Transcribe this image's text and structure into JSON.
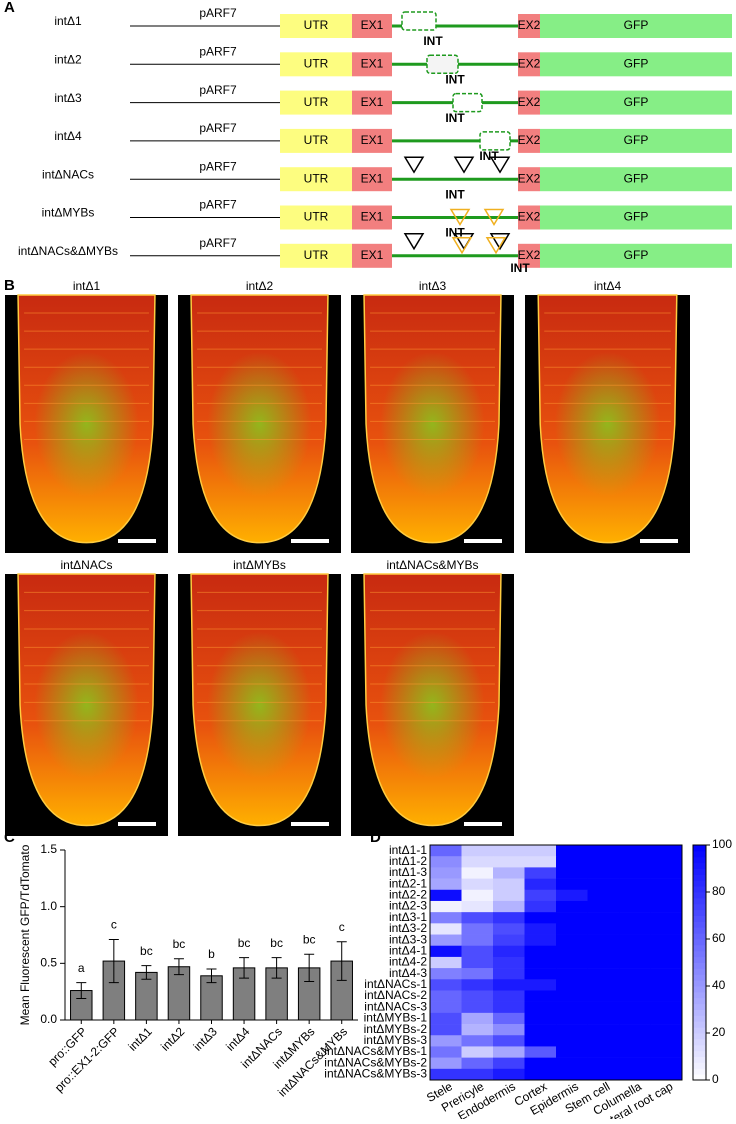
{
  "panel_a": {
    "label": "A",
    "constructs": [
      {
        "name": "intΔ1",
        "promoter": "pARF7",
        "utr": "UTR",
        "ex1": "EX1",
        "int": "INT",
        "ex2": "EX2",
        "gfp": "GFP"
      },
      {
        "name": "intΔ2",
        "promoter": "pARF7",
        "utr": "UTR",
        "ex1": "EX1",
        "int": "INT",
        "ex2": "EX2",
        "gfp": "GFP"
      },
      {
        "name": "intΔ3",
        "promoter": "pARF7",
        "utr": "UTR",
        "ex1": "EX1",
        "int": "INT",
        "ex2": "EX2",
        "gfp": "GFP"
      },
      {
        "name": "intΔ4",
        "promoter": "pARF7",
        "utr": "UTR",
        "ex1": "EX1",
        "int": "INT",
        "ex2": "EX2",
        "gfp": "GFP"
      },
      {
        "name": "intΔNACs",
        "promoter": "pARF7",
        "utr": "UTR",
        "ex1": "EX1",
        "int": "INT",
        "ex2": "EX2",
        "gfp": "GFP"
      },
      {
        "name": "intΔMYBs",
        "promoter": "pARF7",
        "utr": "UTR",
        "ex1": "EX1",
        "int": "INT",
        "ex2": "EX2",
        "gfp": "GFP"
      },
      {
        "name": "intΔNACs&ΔMYBs",
        "promoter": "pARF7",
        "utr": "UTR",
        "ex1": "EX1",
        "int": "INT",
        "ex2": "EX2",
        "gfp": "GFP"
      }
    ]
  },
  "panel_b": {
    "label": "B",
    "images": [
      "intΔ1",
      "intΔ2",
      "intΔ3",
      "intΔ4",
      "intΔNACs",
      "intΔMYBs",
      "intΔNACs&MYBs"
    ]
  },
  "chart_data": [
    {
      "type": "bar",
      "label": "C",
      "ylabel": "Mean Fluorescent  GFP/TdTomato",
      "categories": [
        "pro::GFP",
        "pro::EX1-2:GFP",
        "intΔ1",
        "intΔ2",
        "intΔ3",
        "intΔ4",
        "intΔNACs",
        "intΔMYBs",
        "intΔNACs&MYBs"
      ],
      "values": [
        0.26,
        0.52,
        0.42,
        0.47,
        0.39,
        0.46,
        0.46,
        0.46,
        0.52
      ],
      "errors": [
        0.07,
        0.19,
        0.06,
        0.07,
        0.06,
        0.09,
        0.09,
        0.12,
        0.17
      ],
      "annotations": [
        "a",
        "c",
        "bc",
        "bc",
        "b",
        "bc",
        "bc",
        "bc",
        "c"
      ],
      "color": "#7f7f7f",
      "ylim": [
        0,
        1.5
      ],
      "yticks": [
        {
          "value": 0,
          "label": "0.0"
        },
        {
          "value": 0.5,
          "label": "0.5"
        },
        {
          "value": 1,
          "label": "1.0"
        },
        {
          "value": 1.5,
          "label": "1.5"
        }
      ]
    },
    {
      "type": "heatmap",
      "label": "D",
      "rows": [
        "intΔ1-1",
        "intΔ1-2",
        "intΔ1-3",
        "intΔ2-1",
        "intΔ2-2",
        "intΔ2-3",
        "intΔ3-1",
        "intΔ3-2",
        "intΔ3-3",
        "intΔ4-1",
        "intΔ4-2",
        "intΔ4-3",
        "intΔNACs-1",
        "intΔNACs-2",
        "intΔNACs-3",
        "intΔMYBs-1",
        "intΔMYBs-2",
        "intΔMYBs-3",
        "intΔNACs&MYBs-1",
        "intΔNACs&MYBs-2",
        "intΔNACs&MYBs-3"
      ],
      "columns": [
        "Stele",
        "Prericyle",
        "Endodermis",
        "Cortex",
        "Epidermis",
        "Stem cell",
        "Columella",
        "Lateral root cap"
      ],
      "values": [
        [
          60,
          20,
          20,
          20,
          100,
          100,
          100,
          100
        ],
        [
          45,
          15,
          15,
          15,
          100,
          100,
          100,
          100
        ],
        [
          40,
          5,
          30,
          75,
          100,
          100,
          100,
          100
        ],
        [
          35,
          15,
          20,
          85,
          100,
          100,
          100,
          100
        ],
        [
          95,
          5,
          20,
          75,
          90,
          100,
          100,
          100
        ],
        [
          5,
          10,
          30,
          80,
          100,
          100,
          100,
          100
        ],
        [
          50,
          70,
          80,
          100,
          100,
          100,
          100,
          100
        ],
        [
          10,
          55,
          70,
          90,
          100,
          100,
          100,
          100
        ],
        [
          40,
          55,
          75,
          90,
          100,
          100,
          100,
          100
        ],
        [
          95,
          70,
          85,
          100,
          100,
          100,
          100,
          100
        ],
        [
          20,
          70,
          80,
          100,
          100,
          100,
          100,
          100
        ],
        [
          50,
          55,
          80,
          100,
          100,
          100,
          100,
          100
        ],
        [
          70,
          80,
          90,
          90,
          100,
          100,
          100,
          100
        ],
        [
          60,
          70,
          80,
          100,
          100,
          100,
          100,
          100
        ],
        [
          60,
          70,
          80,
          100,
          100,
          100,
          100,
          100
        ],
        [
          70,
          35,
          60,
          100,
          100,
          100,
          100,
          100
        ],
        [
          70,
          30,
          45,
          100,
          100,
          100,
          100,
          100
        ],
        [
          40,
          55,
          70,
          100,
          100,
          100,
          100,
          100
        ],
        [
          55,
          20,
          35,
          65,
          100,
          100,
          100,
          100
        ],
        [
          40,
          60,
          75,
          100,
          100,
          100,
          100,
          100
        ],
        [
          80,
          80,
          90,
          100,
          100,
          100,
          100,
          100
        ]
      ],
      "colorscale": [
        "#ffffff",
        "#0000ff"
      ],
      "clim": [
        0,
        100
      ],
      "cticks": [
        0,
        20,
        40,
        60,
        80,
        100
      ]
    }
  ]
}
